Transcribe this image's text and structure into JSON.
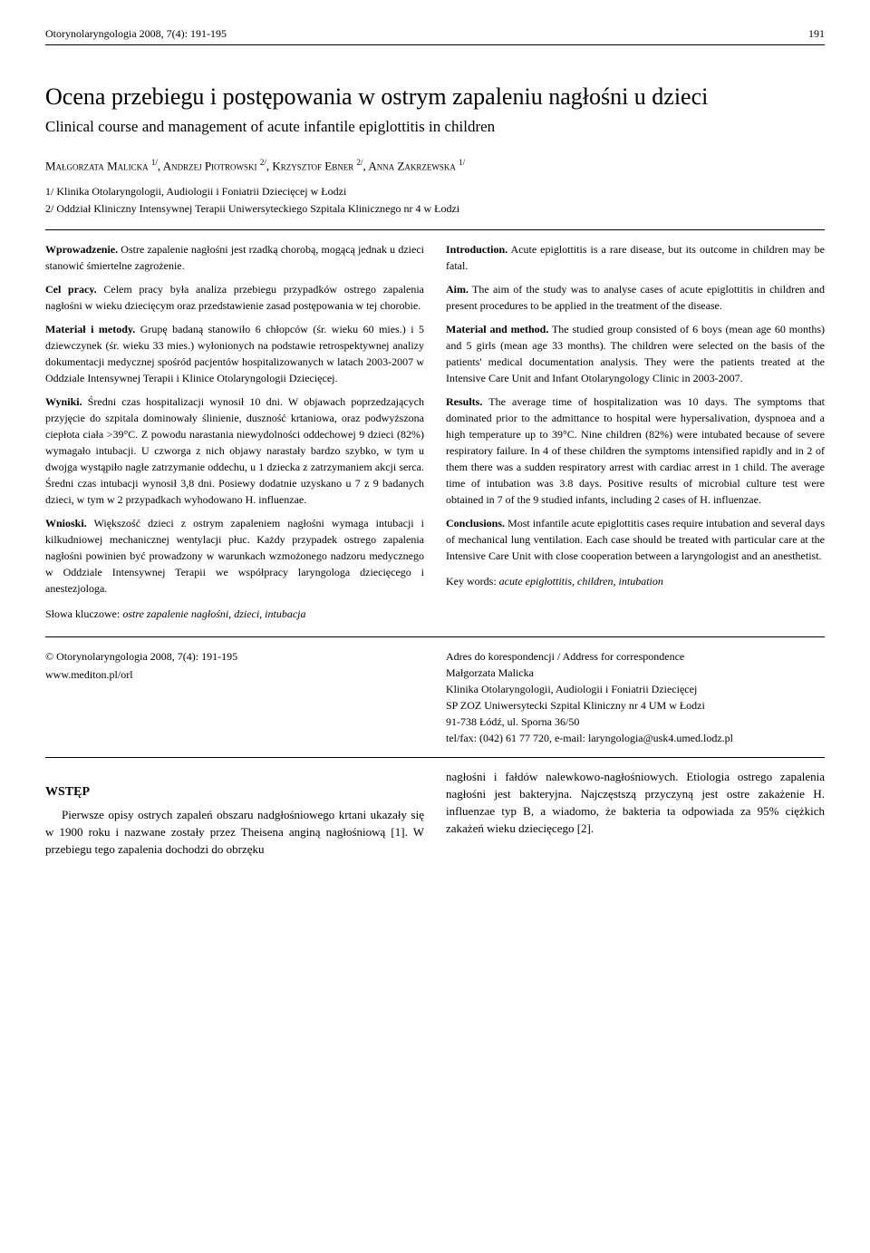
{
  "header": {
    "running_left": "Otorynolaryngologia 2008, 7(4): 191-195",
    "page_number": "191"
  },
  "title": {
    "pl": "Ocena przebiegu i postępowania w ostrym zapaleniu nagłośni u dzieci",
    "en": "Clinical course and management of acute infantile epiglottitis in children"
  },
  "authors_html": "Małgorzata Malicka <span class='sup'>1/</span>, Andrzej Piotrowski <span class='sup'>2/</span>, Krzysztof Ebner <span class='sup'>2/</span>, Anna Zakrzewska <span class='sup'>1/</span>",
  "affiliations": {
    "a1": "1/ Klinika Otolaryngologii, Audiologii i Foniatrii Dziecięcej w Łodzi",
    "a2": "2/ Oddział Kliniczny Intensywnej Terapii Uniwersyteckiego Szpitala Klinicznego nr 4 w Łodzi"
  },
  "abstract_pl": {
    "p1_lead": "Wprowadzenie.",
    "p1": " Ostre zapalenie nagłośni jest rzadką chorobą, mogącą jednak u dzieci stanowić śmiertelne zagrożenie.",
    "p2_lead": "Cel pracy.",
    "p2": " Celem pracy była analiza przebiegu przypadków ostrego zapalenia nagłośni w wieku dziecięcym oraz przedstawienie zasad postępowania w tej chorobie.",
    "p3_lead": "Materiał i metody.",
    "p3": " Grupę badaną stanowiło 6 chłopców (śr. wieku 60 mies.) i 5 dziewczynek (śr. wieku 33 mies.) wyłonionych na podstawie retrospektywnej analizy dokumentacji medycznej spośród pacjentów hospitalizowanych w latach 2003-2007 w Oddziale Intensywnej Terapii i Klinice Otolaryngologii Dziecięcej.",
    "p4_lead": "Wyniki.",
    "p4": " Średni czas hospitalizacji wynosił 10 dni. W objawach poprzedzających przyjęcie do szpitala dominowały ślinienie, duszność krtaniowa, oraz podwyższona ciepłota ciała >39°C. Z powodu narastania niewydolności oddechowej 9 dzieci (82%) wymagało intubacji. U czworga z nich objawy narastały bardzo szybko, w tym u dwojga wystąpiło nagłe zatrzymanie oddechu, u 1 dziecka z zatrzymaniem akcji serca. Średni czas intubacji wynosił 3,8 dni. Posiewy dodatnie uzyskano u 7 z 9 badanych dzieci, w tym w 2 przypadkach wyhodowano H. influenzae.",
    "p5_lead": "Wnioski.",
    "p5": " Większość dzieci z ostrym zapaleniem nagłośni wymaga intubacji i kilkudniowej mechanicznej wentylacji płuc. Każdy przypadek ostrego zapalenia nagłośni powinien być prowadzony w warunkach wzmożonego nadzoru medycznego w Oddziale Intensywnej Terapii we współpracy laryngologa dziecięcego i anestezjologa.",
    "keywords_lead": "Słowa kluczowe:",
    "keywords": " ostre zapalenie nagłośni, dzieci, intubacja"
  },
  "abstract_en": {
    "p1_lead": "Introduction.",
    "p1": " Acute epiglottitis is a rare disease, but its outcome in children may be fatal.",
    "p2_lead": "Aim.",
    "p2": " The aim of the study was to analyse cases of acute epiglottitis in children and present procedures to be applied in the treatment of the disease.",
    "p3_lead": "Material and method.",
    "p3": " The studied group consisted of 6 boys (mean age 60 months) and 5 girls (mean age 33 months). The children were selected on the basis of the patients' medical documentation analysis. They were the patients treated at the Intensive Care Unit and Infant Otolaryngology Clinic in 2003-2007.",
    "p4_lead": "Results.",
    "p4": " The average time of hospitalization was 10 days. The symptoms that dominated prior to the admittance to hospital were hypersalivation, dyspnoea and a high temperature up to 39°C. Nine children (82%) were intubated because of severe respiratory failure. In 4 of these children the symptoms intensified rapidly and in 2 of them there was a sudden respiratory arrest with cardiac arrest in 1 child. The average time of intubation was 3.8 days. Positive results of microbial culture test were obtained in 7 of the 9 studied infants, including 2 cases of H. influenzae.",
    "p5_lead": "Conclusions.",
    "p5": " Most infantile acute epiglottitis cases require intubation and several days of mechanical lung ventilation. Each case should be treated with particular care at the Intensive Care Unit with close cooperation between a laryngologist and an anesthetist.",
    "keywords_lead": "Key words:",
    "keywords": " acute epiglottitis, children, intubation"
  },
  "footer": {
    "journal": "© Otorynolaryngologia  2008, 7(4): 191-195",
    "url": "www.mediton.pl/orl",
    "address_title": "Adres do korespondencji / Address for correspondence",
    "name": "Małgorzata Malicka",
    "line1": "Klinika Otolaryngologii, Audiologii i Foniatrii Dziecięcej",
    "line2": "SP ZOZ Uniwersytecki Szpital Kliniczny nr 4 UM w Łodzi",
    "line3": "91-738 Łódź, ul. Sporna 36/50",
    "line4": "tel/fax: (042) 61 77 720,  e-mail: laryngologia@usk4.umed.lodz.pl"
  },
  "body": {
    "heading": "WSTĘP",
    "left": "Pierwsze opisy ostrych zapaleń obszaru nadgłośniowego krtani ukazały się w 1900 roku i nazwane zostały przez Theisena anginą nagłośniową [1]. W przebiegu tego zapalenia dochodzi do obrzęku",
    "right": "nagłośni i fałdów nalewkowo-nagłośniowych. Etiologia ostrego zapalenia nagłośni jest bakteryjna. Najczęstszą przyczyną jest ostre zakażenie H. influenzae typ B, a wiadomo, że bakteria ta odpowiada za 95% ciężkich zakażeń wieku dziecięcego [2]."
  }
}
